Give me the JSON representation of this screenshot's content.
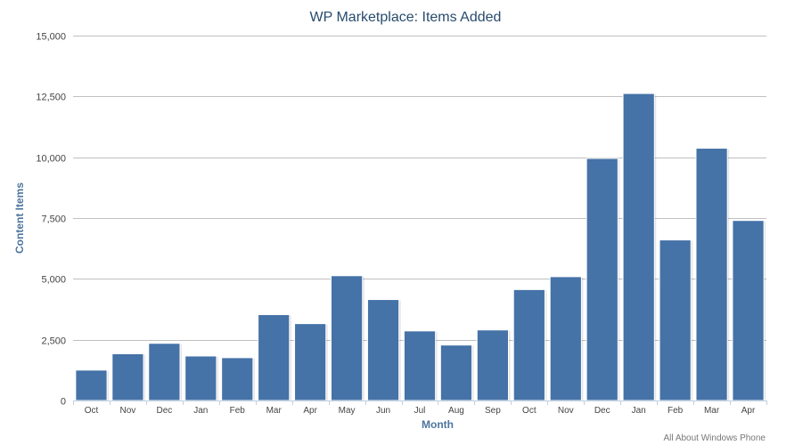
{
  "chart_data": {
    "type": "bar",
    "title": "WP Marketplace: Items Added",
    "xlabel": "Month",
    "ylabel": "Content Items",
    "credit": "All About Windows Phone",
    "categories": [
      "Oct",
      "Nov",
      "Dec",
      "Jan",
      "Feb",
      "Mar",
      "Apr",
      "May",
      "Jun",
      "Jul",
      "Aug",
      "Sep",
      "Oct",
      "Nov",
      "Dec",
      "Jan",
      "Feb",
      "Mar",
      "Apr"
    ],
    "values": [
      1250,
      1920,
      2350,
      1830,
      1760,
      3530,
      3160,
      5130,
      4150,
      2860,
      2280,
      2900,
      4560,
      5090,
      9950,
      12620,
      6600,
      10370,
      7400
    ],
    "ylim": [
      0,
      15000
    ],
    "yticks": [
      0,
      2500,
      5000,
      7500,
      10000,
      12500,
      15000
    ],
    "ytick_labels": [
      "0",
      "2,500",
      "5,000",
      "7,500",
      "10,000",
      "12,500",
      "15,000"
    ],
    "grid": true,
    "legend": "none",
    "bar_color": "#4572a7"
  }
}
